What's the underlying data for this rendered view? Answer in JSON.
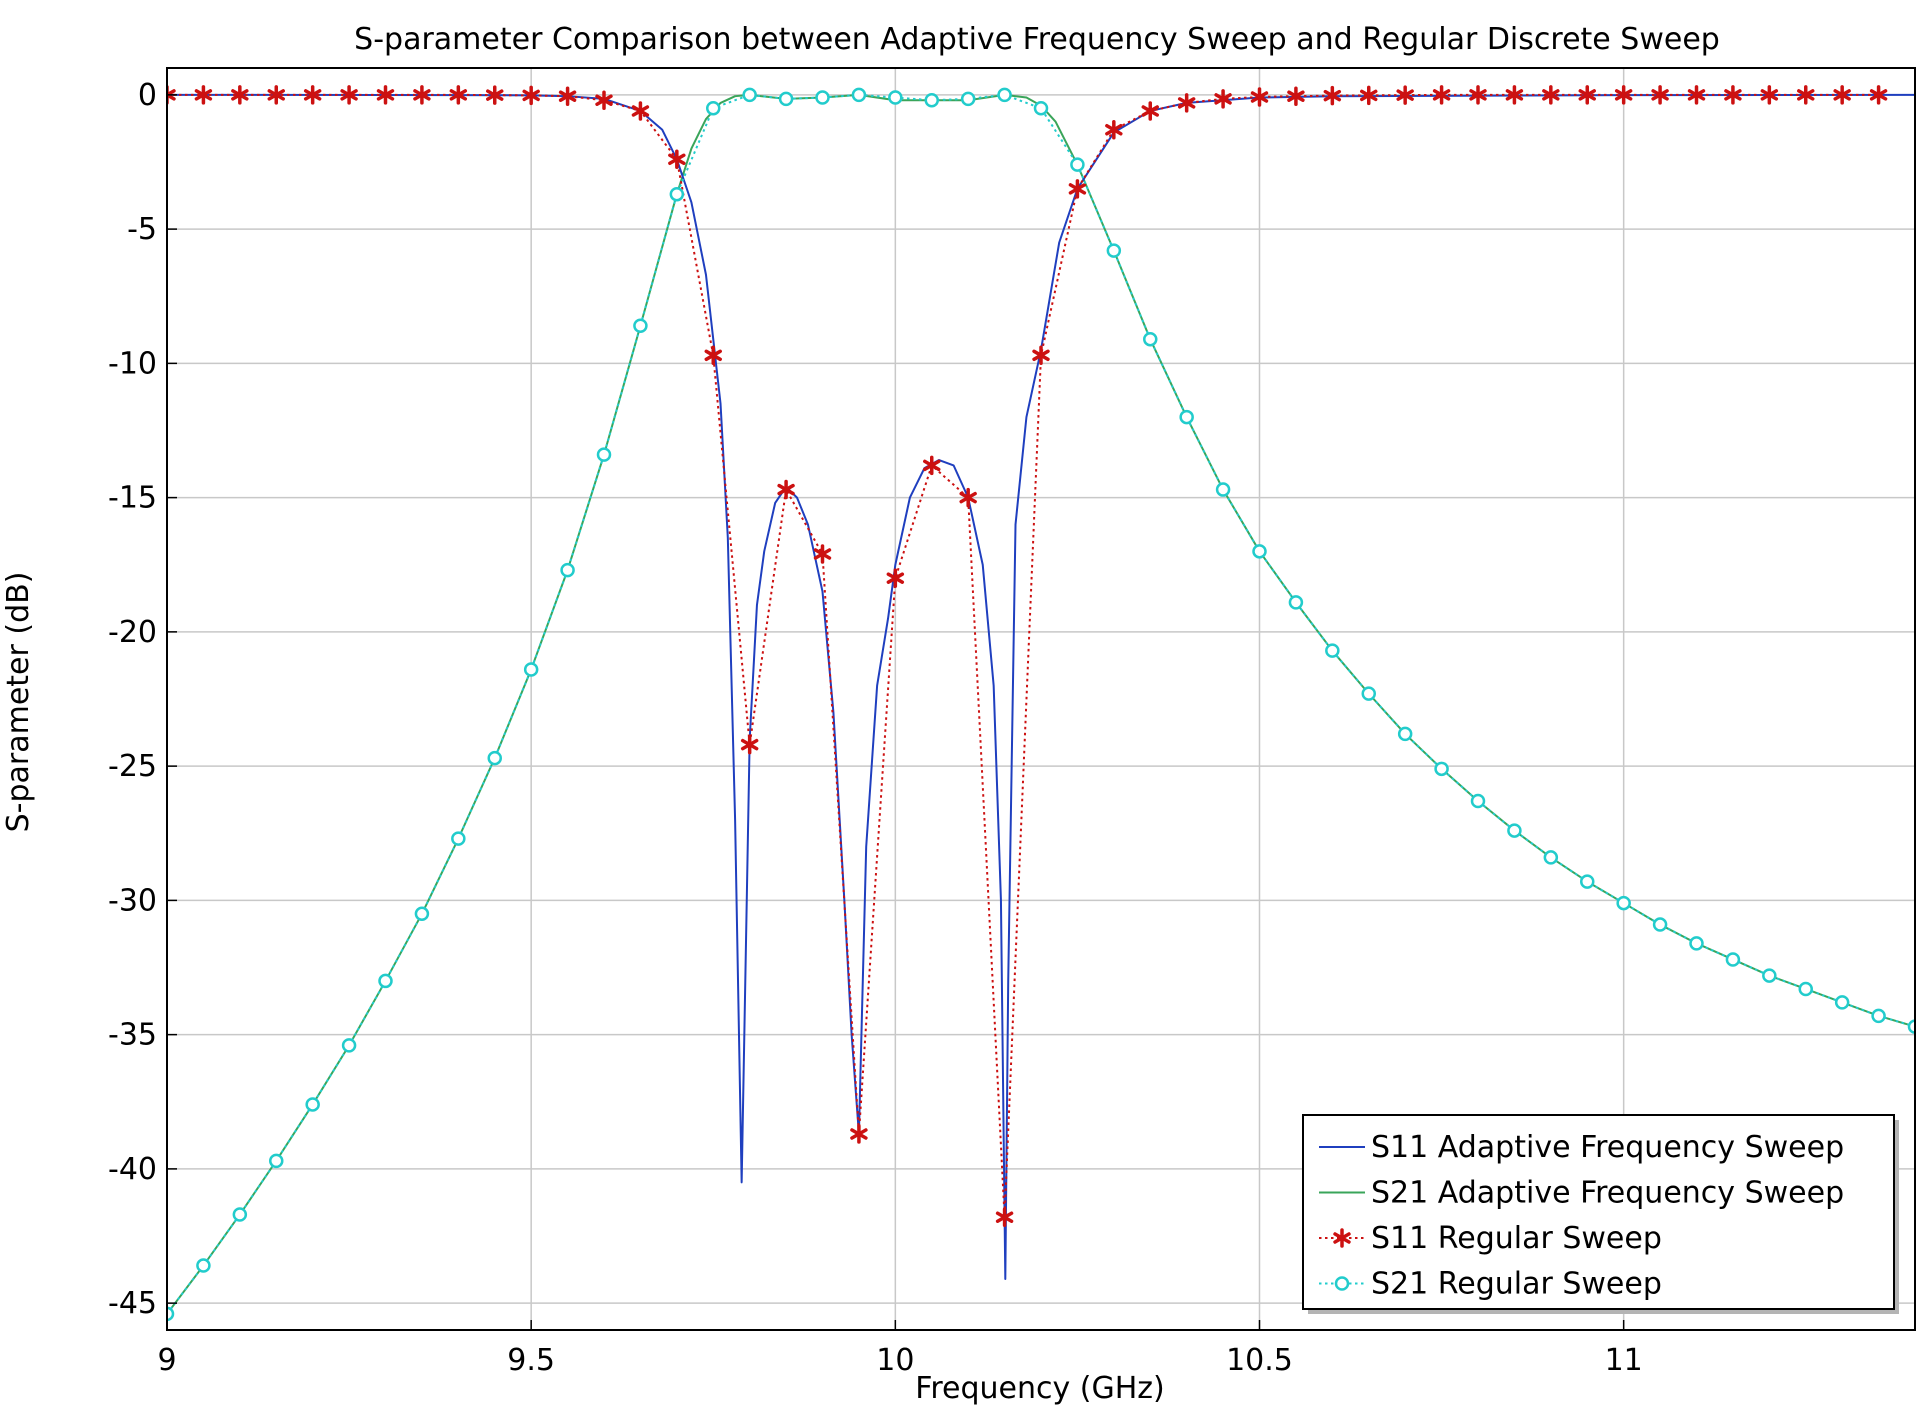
{
  "chart_data": {
    "type": "line",
    "title": "S-parameter Comparison between Adaptive Frequency Sweep and Regular Discrete Sweep",
    "xlabel": "Frequency (GHz)",
    "ylabel": "S-parameter (dB)",
    "xlim": [
      9,
      11.4
    ],
    "ylim": [
      -46,
      1
    ],
    "xticks": [
      {
        "v": 9,
        "label": "9"
      },
      {
        "v": 9.5,
        "label": "9.5"
      },
      {
        "v": 10,
        "label": "10"
      },
      {
        "v": 10.5,
        "label": "10.5"
      },
      {
        "v": 11,
        "label": "11"
      }
    ],
    "yticks": [
      {
        "v": 0,
        "label": "0"
      },
      {
        "v": -5,
        "label": "-5"
      },
      {
        "v": -10,
        "label": "-10"
      },
      {
        "v": -15,
        "label": "-15"
      },
      {
        "v": -20,
        "label": "-20"
      },
      {
        "v": -25,
        "label": "-25"
      },
      {
        "v": -30,
        "label": "-30"
      },
      {
        "v": -35,
        "label": "-35"
      },
      {
        "v": -40,
        "label": "-40"
      },
      {
        "v": -45,
        "label": "-45"
      }
    ],
    "grid": true,
    "legend_position": "bottom-right",
    "series": [
      {
        "name": "S11 Adaptive Frequency Sweep",
        "color": "#1f3fbf",
        "style": "solid",
        "marker": "none",
        "x": [
          9.0,
          9.4,
          9.5,
          9.55,
          9.6,
          9.65,
          9.68,
          9.7,
          9.72,
          9.74,
          9.76,
          9.77,
          9.78,
          9.789,
          9.8,
          9.81,
          9.82,
          9.835,
          9.85,
          9.865,
          9.88,
          9.9,
          9.915,
          9.93,
          9.94,
          9.95,
          9.96,
          9.975,
          9.99,
          10.0,
          10.02,
          10.04,
          10.06,
          10.08,
          10.1,
          10.12,
          10.135,
          10.145,
          10.151,
          10.155,
          10.165,
          10.18,
          10.2,
          10.225,
          10.25,
          10.3,
          10.35,
          10.4,
          10.5,
          10.6,
          11.0,
          11.4
        ],
        "y": [
          0,
          -0.01,
          -0.02,
          -0.05,
          -0.15,
          -0.6,
          -1.3,
          -2.4,
          -4.0,
          -6.7,
          -11.5,
          -16.5,
          -27.0,
          -40.5,
          -24.0,
          -19.0,
          -17.0,
          -15.2,
          -14.6,
          -15.0,
          -16.0,
          -18.5,
          -23.0,
          -30.0,
          -35.0,
          -38.7,
          -28.0,
          -22.0,
          -19.5,
          -17.5,
          -15.0,
          -13.9,
          -13.6,
          -13.8,
          -15.0,
          -17.5,
          -22.0,
          -30.0,
          -44.1,
          -33.0,
          -16.0,
          -12.0,
          -9.5,
          -5.5,
          -3.5,
          -1.4,
          -0.6,
          -0.3,
          -0.1,
          -0.05,
          -0.01,
          0
        ]
      },
      {
        "name": "S21 Adaptive Frequency Sweep",
        "color": "#3aa55a",
        "style": "solid",
        "marker": "none",
        "x": [
          9.0,
          9.05,
          9.1,
          9.15,
          9.2,
          9.25,
          9.3,
          9.35,
          9.4,
          9.45,
          9.5,
          9.55,
          9.6,
          9.65,
          9.7,
          9.72,
          9.74,
          9.76,
          9.78,
          9.8,
          9.85,
          9.9,
          9.95,
          10.0,
          10.05,
          10.1,
          10.15,
          10.18,
          10.2,
          10.22,
          10.25,
          10.3,
          10.35,
          10.4,
          10.45,
          10.5,
          10.55,
          10.6,
          10.65,
          10.7,
          10.75,
          10.8,
          10.85,
          10.9,
          10.95,
          11.0,
          11.05,
          11.1,
          11.15,
          11.2,
          11.25,
          11.3,
          11.35,
          11.4
        ],
        "y": [
          -45.4,
          -43.6,
          -41.7,
          -39.7,
          -37.6,
          -35.4,
          -33.0,
          -30.5,
          -27.7,
          -24.7,
          -21.4,
          -17.7,
          -13.4,
          -8.6,
          -3.7,
          -2.0,
          -0.9,
          -0.3,
          -0.05,
          0,
          -0.15,
          -0.1,
          0,
          -0.2,
          -0.2,
          -0.2,
          0,
          -0.1,
          -0.4,
          -1.0,
          -2.6,
          -5.8,
          -9.1,
          -12.0,
          -14.7,
          -17.0,
          -18.9,
          -20.7,
          -22.3,
          -23.8,
          -25.1,
          -26.3,
          -27.4,
          -28.4,
          -29.3,
          -30.1,
          -30.9,
          -31.6,
          -32.2,
          -32.8,
          -33.3,
          -33.8,
          -34.3,
          -34.7
        ]
      },
      {
        "name": "S11 Regular Sweep",
        "color": "#cc1111",
        "style": "dotted",
        "marker": "asterisk",
        "x": [
          9.0,
          9.05,
          9.1,
          9.15,
          9.2,
          9.25,
          9.3,
          9.35,
          9.4,
          9.45,
          9.5,
          9.55,
          9.6,
          9.65,
          9.7,
          9.75,
          9.8,
          9.85,
          9.9,
          9.95,
          10.0,
          10.05,
          10.1,
          10.15,
          10.2,
          10.25,
          10.3,
          10.35,
          10.4,
          10.45,
          10.5,
          10.55,
          10.6,
          10.65,
          10.7,
          10.75,
          10.8,
          10.85,
          10.9,
          10.95,
          11.0,
          11.05,
          11.1,
          11.15,
          11.2,
          11.25,
          11.3,
          11.35
        ],
        "y": [
          0,
          0,
          0,
          0,
          0,
          0,
          0,
          0,
          0,
          -0.01,
          -0.02,
          -0.05,
          -0.2,
          -0.6,
          -2.4,
          -9.7,
          -24.2,
          -14.7,
          -17.1,
          -38.7,
          -18.0,
          -13.8,
          -15.0,
          -41.8,
          -9.7,
          -3.5,
          -1.3,
          -0.6,
          -0.3,
          -0.15,
          -0.08,
          -0.05,
          -0.03,
          -0.02,
          -0.01,
          0,
          0,
          0,
          0,
          0,
          0,
          0,
          0,
          0,
          0,
          0,
          0,
          0
        ]
      },
      {
        "name": "S21 Regular Sweep",
        "color": "#22cccc",
        "style": "dotted",
        "marker": "circle",
        "x": [
          9.0,
          9.05,
          9.1,
          9.15,
          9.2,
          9.25,
          9.3,
          9.35,
          9.4,
          9.45,
          9.5,
          9.55,
          9.6,
          9.65,
          9.7,
          9.75,
          9.8,
          9.85,
          9.9,
          9.95,
          10.0,
          10.05,
          10.1,
          10.15,
          10.2,
          10.25,
          10.3,
          10.35,
          10.4,
          10.45,
          10.5,
          10.55,
          10.6,
          10.65,
          10.7,
          10.75,
          10.8,
          10.85,
          10.9,
          10.95,
          11.0,
          11.05,
          11.1,
          11.15,
          11.2,
          11.25,
          11.3,
          11.35,
          11.4
        ],
        "y": [
          -45.4,
          -43.6,
          -41.7,
          -39.7,
          -37.6,
          -35.4,
          -33.0,
          -30.5,
          -27.7,
          -24.7,
          -21.4,
          -17.7,
          -13.4,
          -8.6,
          -3.7,
          -0.5,
          0,
          -0.15,
          -0.1,
          0,
          -0.1,
          -0.2,
          -0.15,
          0,
          -0.5,
          -2.6,
          -5.8,
          -9.1,
          -12.0,
          -14.7,
          -17.0,
          -18.9,
          -20.7,
          -22.3,
          -23.8,
          -25.1,
          -26.3,
          -27.4,
          -28.4,
          -29.3,
          -30.1,
          -30.9,
          -31.6,
          -32.2,
          -32.8,
          -33.3,
          -33.8,
          -34.3,
          -34.7
        ]
      }
    ]
  }
}
